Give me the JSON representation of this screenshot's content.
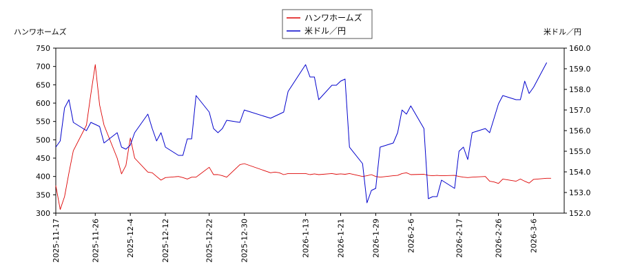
{
  "chart_data": {
    "type": "line",
    "legend_position": "top-center",
    "grid": false,
    "left_axis_title": "ハンワホームズ",
    "right_axis_title": "米ドル／円",
    "left_ylim": [
      300,
      750
    ],
    "right_ylim": [
      152.0,
      160.0
    ],
    "left_ticks": [
      "300",
      "350",
      "400",
      "450",
      "500",
      "550",
      "600",
      "650",
      "700",
      "750"
    ],
    "right_ticks": [
      "152.0",
      "153.0",
      "154.0",
      "155.0",
      "156.0",
      "157.0",
      "158.0",
      "159.0",
      "160.0"
    ],
    "x_start": "2025-11-17",
    "x_end": "2026-03-13",
    "x_ticks": [
      "2025-11-17",
      "2025-11-26",
      "2025-12-4",
      "2025-12-12",
      "2025-12-22",
      "2025-12-30",
      "2026-1-13",
      "2026-1-21",
      "2026-1-29",
      "2026-2-6",
      "2026-2-17",
      "2026-2-26",
      "2026-3-6"
    ],
    "series": [
      {
        "name": "ハンワホームズ",
        "color": "#dd0000",
        "axis": "left",
        "points": [
          [
            "2025-11-17",
            375
          ],
          [
            "2025-11-18",
            310
          ],
          [
            "2025-11-19",
            345
          ],
          [
            "2025-11-20",
            410
          ],
          [
            "2025-11-21",
            470
          ],
          [
            "2025-11-24",
            540
          ],
          [
            "2025-11-25",
            625
          ],
          [
            "2025-11-26",
            705
          ],
          [
            "2025-11-27",
            595
          ],
          [
            "2025-11-28",
            540
          ],
          [
            "2025-12-1",
            450
          ],
          [
            "2025-12-2",
            407
          ],
          [
            "2025-12-3",
            430
          ],
          [
            "2025-12-4",
            505
          ],
          [
            "2025-12-5",
            450
          ],
          [
            "2025-12-8",
            412
          ],
          [
            "2025-12-9",
            410
          ],
          [
            "2025-12-10",
            400
          ],
          [
            "2025-12-11",
            390
          ],
          [
            "2025-12-12",
            397
          ],
          [
            "2025-12-15",
            400
          ],
          [
            "2025-12-16",
            397
          ],
          [
            "2025-12-17",
            393
          ],
          [
            "2025-12-18",
            398
          ],
          [
            "2025-12-19",
            398
          ],
          [
            "2025-12-22",
            425
          ],
          [
            "2025-12-23",
            405
          ],
          [
            "2025-12-24",
            405
          ],
          [
            "2025-12-25",
            402
          ],
          [
            "2025-12-26",
            398
          ],
          [
            "2025-12-29",
            432
          ],
          [
            "2025-12-30",
            435
          ],
          [
            "2026-1-5",
            410
          ],
          [
            "2026-1-6",
            412
          ],
          [
            "2026-1-7",
            410
          ],
          [
            "2026-1-8",
            405
          ],
          [
            "2026-1-9",
            408
          ],
          [
            "2026-1-13",
            408
          ],
          [
            "2026-1-14",
            405
          ],
          [
            "2026-1-15",
            407
          ],
          [
            "2026-1-16",
            405
          ],
          [
            "2026-1-19",
            408
          ],
          [
            "2026-1-20",
            406
          ],
          [
            "2026-1-21",
            407
          ],
          [
            "2026-1-22",
            406
          ],
          [
            "2026-1-23",
            408
          ],
          [
            "2026-1-26",
            400
          ],
          [
            "2026-1-27",
            402
          ],
          [
            "2026-1-28",
            405
          ],
          [
            "2026-1-29",
            400
          ],
          [
            "2026-1-30",
            398
          ],
          [
            "2026-2-2",
            402
          ],
          [
            "2026-2-3",
            403
          ],
          [
            "2026-2-4",
            408
          ],
          [
            "2026-2-5",
            410
          ],
          [
            "2026-2-6",
            405
          ],
          [
            "2026-2-9",
            406
          ],
          [
            "2026-2-10",
            403
          ],
          [
            "2026-2-11",
            402
          ],
          [
            "2026-2-12",
            403
          ],
          [
            "2026-2-13",
            402
          ],
          [
            "2026-2-16",
            403
          ],
          [
            "2026-2-17",
            400
          ],
          [
            "2026-2-18",
            398
          ],
          [
            "2026-2-19",
            397
          ],
          [
            "2026-2-20",
            398
          ],
          [
            "2026-2-23",
            400
          ],
          [
            "2026-2-24",
            387
          ],
          [
            "2026-2-25",
            385
          ],
          [
            "2026-2-26",
            381
          ],
          [
            "2026-2-27",
            393
          ],
          [
            "2026-3-2",
            387
          ],
          [
            "2026-3-3",
            393
          ],
          [
            "2026-3-4",
            387
          ],
          [
            "2026-3-5",
            382
          ],
          [
            "2026-3-6",
            392
          ],
          [
            "2026-3-9",
            395
          ],
          [
            "2026-3-10",
            395
          ]
        ]
      },
      {
        "name": "米ドル／円",
        "color": "#0000cc",
        "axis": "right",
        "points": [
          [
            "2025-11-17",
            155.2
          ],
          [
            "2025-11-18",
            155.5
          ],
          [
            "2025-11-19",
            157.1
          ],
          [
            "2025-11-20",
            157.5
          ],
          [
            "2025-11-21",
            156.4
          ],
          [
            "2025-11-24",
            156.0
          ],
          [
            "2025-11-25",
            156.4
          ],
          [
            "2025-11-26",
            156.3
          ],
          [
            "2025-11-27",
            156.2
          ],
          [
            "2025-11-28",
            155.4
          ],
          [
            "2025-12-1",
            155.9
          ],
          [
            "2025-12-2",
            155.2
          ],
          [
            "2025-12-3",
            155.1
          ],
          [
            "2025-12-4",
            155.3
          ],
          [
            "2025-12-5",
            155.9
          ],
          [
            "2025-12-8",
            156.8
          ],
          [
            "2025-12-9",
            156.1
          ],
          [
            "2025-12-10",
            155.5
          ],
          [
            "2025-12-11",
            155.9
          ],
          [
            "2025-12-12",
            155.2
          ],
          [
            "2025-12-15",
            154.8
          ],
          [
            "2025-12-16",
            154.8
          ],
          [
            "2025-12-17",
            155.6
          ],
          [
            "2025-12-18",
            155.6
          ],
          [
            "2025-12-19",
            157.7
          ],
          [
            "2025-12-22",
            156.9
          ],
          [
            "2025-12-23",
            156.1
          ],
          [
            "2025-12-24",
            155.9
          ],
          [
            "2025-12-25",
            156.1
          ],
          [
            "2025-12-26",
            156.5
          ],
          [
            "2025-12-29",
            156.4
          ],
          [
            "2025-12-30",
            157.0
          ],
          [
            "2026-1-5",
            156.6
          ],
          [
            "2026-1-6",
            156.7
          ],
          [
            "2026-1-7",
            156.8
          ],
          [
            "2026-1-8",
            156.9
          ],
          [
            "2026-1-9",
            157.9
          ],
          [
            "2026-1-13",
            159.2
          ],
          [
            "2026-1-14",
            158.6
          ],
          [
            "2026-1-15",
            158.6
          ],
          [
            "2026-1-16",
            157.5
          ],
          [
            "2026-1-19",
            158.2
          ],
          [
            "2026-1-20",
            158.2
          ],
          [
            "2026-1-21",
            158.4
          ],
          [
            "2026-1-22",
            158.5
          ],
          [
            "2026-1-23",
            155.2
          ],
          [
            "2026-1-26",
            154.4
          ],
          [
            "2026-1-27",
            152.5
          ],
          [
            "2026-1-28",
            153.1
          ],
          [
            "2026-1-29",
            153.2
          ],
          [
            "2026-1-30",
            155.2
          ],
          [
            "2026-2-2",
            155.4
          ],
          [
            "2026-2-3",
            155.9
          ],
          [
            "2026-2-4",
            157.0
          ],
          [
            "2026-2-5",
            156.8
          ],
          [
            "2026-2-6",
            157.2
          ],
          [
            "2026-2-9",
            156.1
          ],
          [
            "2026-2-10",
            152.7
          ],
          [
            "2026-2-11",
            152.8
          ],
          [
            "2026-2-12",
            152.8
          ],
          [
            "2026-2-13",
            153.6
          ],
          [
            "2026-2-16",
            153.2
          ],
          [
            "2026-2-17",
            155.0
          ],
          [
            "2026-2-18",
            155.2
          ],
          [
            "2026-2-19",
            154.6
          ],
          [
            "2026-2-20",
            155.9
          ],
          [
            "2026-2-23",
            156.1
          ],
          [
            "2026-2-24",
            155.9
          ],
          [
            "2026-2-25",
            156.6
          ],
          [
            "2026-2-26",
            157.3
          ],
          [
            "2026-2-27",
            157.7
          ],
          [
            "2026-3-2",
            157.5
          ],
          [
            "2026-3-3",
            157.5
          ],
          [
            "2026-3-4",
            158.4
          ],
          [
            "2026-3-5",
            157.8
          ],
          [
            "2026-3-6",
            158.1
          ],
          [
            "2026-3-9",
            159.3
          ]
        ]
      }
    ]
  }
}
